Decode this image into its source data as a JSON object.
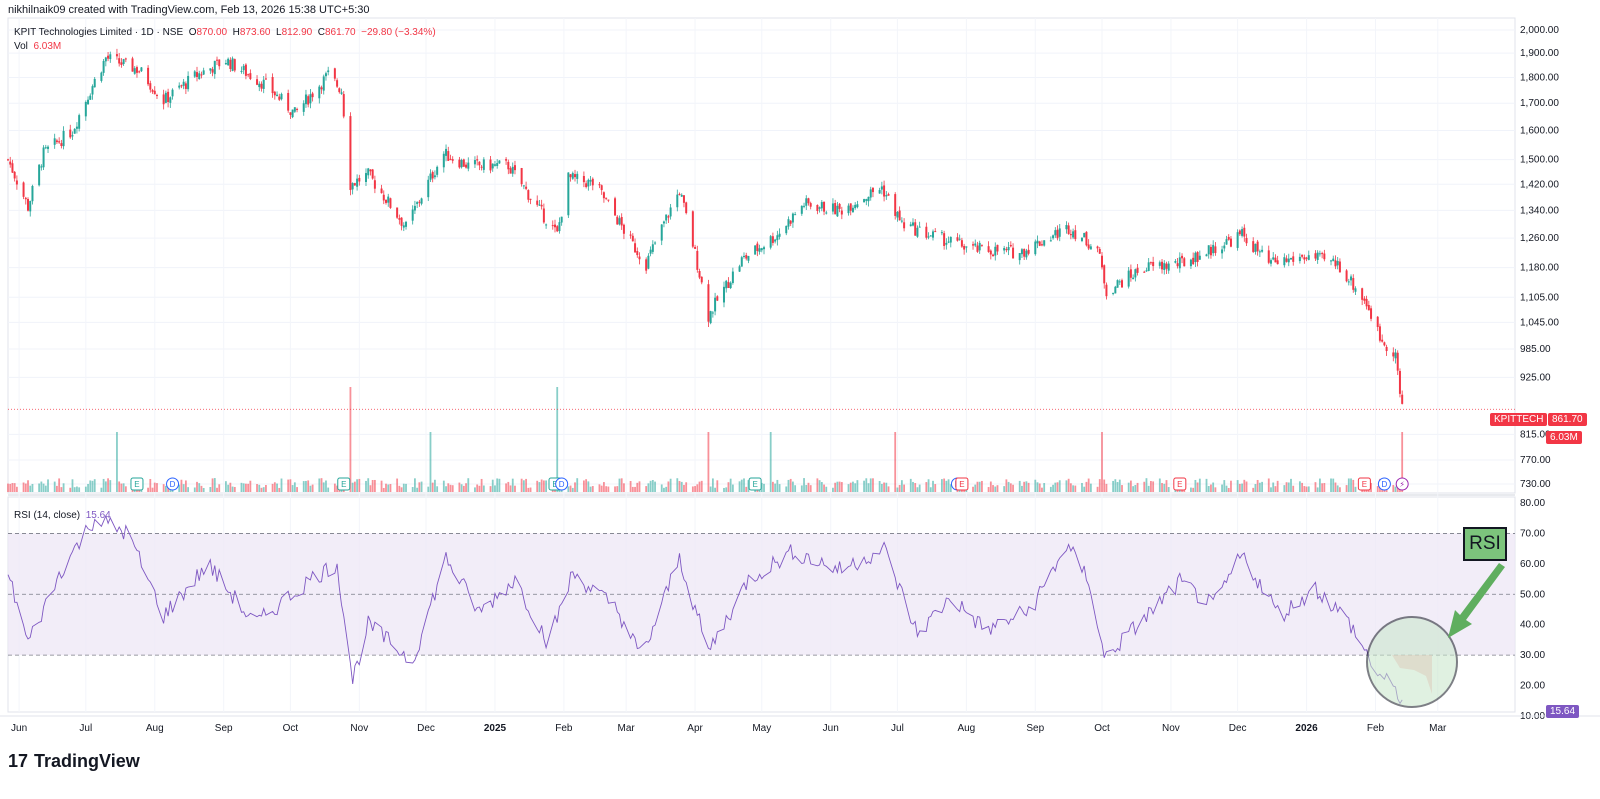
{
  "header": {
    "credit": "nikhilnaik09 created with TradingView.com, Feb 13, 2026 15:38 UTC+5:30"
  },
  "legend": {
    "symbol_line": "KPIT Technologies Limited · 1D · NSE",
    "o_label": "O",
    "o_value": "870.00",
    "h_label": "H",
    "h_value": "873.60",
    "l_label": "L",
    "l_value": "812.90",
    "c_label": "C",
    "c_value": "861.70",
    "change": "−29.80 (−3.34%)",
    "vol_label": "Vol",
    "vol_value": "6.03M",
    "rsi_label": "RSI (14, close)",
    "rsi_value": "15.64"
  },
  "price_tags": {
    "symbol": "KPITTECH",
    "last": "861.70",
    "volume": "6.03M",
    "rsi": "15.64"
  },
  "annotation": {
    "label": "RSI"
  },
  "brand": {
    "name": "TradingView"
  },
  "colors": {
    "up": "#26a69a",
    "down": "#f23645",
    "rsi_line": "#7e57c2",
    "rsi_band": "#ede7f6",
    "callout_fill": "#c8e6c9",
    "arrow": "#5fae5f"
  },
  "chart_data": {
    "type": "candlestick",
    "x_labels": [
      "Jun",
      "Jul",
      "Aug",
      "Sep",
      "Oct",
      "Nov",
      "Dec",
      "2025",
      "Feb",
      "Mar",
      "Apr",
      "May",
      "Jun",
      "Jul",
      "Aug",
      "Sep",
      "Oct",
      "Nov",
      "Dec",
      "2026",
      "Feb",
      "Mar"
    ],
    "price_axis_ticks": [
      "2,000.00",
      "1,900.00",
      "1,800.00",
      "1,700.00",
      "1,600.00",
      "1,500.00",
      "1,420.00",
      "1,340.00",
      "1,260.00",
      "1,180.00",
      "1,105.00",
      "1,045.00",
      "985.00",
      "925.00",
      "815.00",
      "770.00",
      "730.00"
    ],
    "rsi_axis_ticks": [
      "80.00",
      "70.00",
      "60.00",
      "50.00",
      "40.00",
      "30.00",
      "20.00",
      "10.00"
    ],
    "price_scale": "log",
    "price_path": [
      [
        "2024-05-27",
        1500
      ],
      [
        "2024-06-05",
        1350
      ],
      [
        "2024-06-12",
        1520
      ],
      [
        "2024-06-25",
        1600
      ],
      [
        "2024-07-10",
        1880
      ],
      [
        "2024-07-25",
        1830
      ],
      [
        "2024-08-05",
        1710
      ],
      [
        "2024-08-20",
        1810
      ],
      [
        "2024-09-02",
        1870
      ],
      [
        "2024-09-20",
        1770
      ],
      [
        "2024-10-03",
        1660
      ],
      [
        "2024-10-18",
        1810
      ],
      [
        "2024-10-24",
        1750
      ],
      [
        "2024-10-28",
        1420
      ],
      [
        "2024-11-05",
        1450
      ],
      [
        "2024-11-22",
        1290
      ],
      [
        "2024-12-09",
        1520
      ],
      [
        "2024-12-20",
        1480
      ],
      [
        "2025-01-07",
        1480
      ],
      [
        "2025-01-20",
        1350
      ],
      [
        "2025-01-29",
        1270
      ],
      [
        "2025-02-03",
        1440
      ],
      [
        "2025-02-15",
        1420
      ],
      [
        "2025-03-03",
        1250
      ],
      [
        "2025-03-10",
        1190
      ],
      [
        "2025-03-25",
        1400
      ],
      [
        "2025-04-07",
        1060
      ],
      [
        "2025-04-22",
        1200
      ],
      [
        "2025-05-08",
        1270
      ],
      [
        "2025-05-20",
        1360
      ],
      [
        "2025-06-05",
        1340
      ],
      [
        "2025-06-24",
        1410
      ],
      [
        "2025-07-03",
        1300
      ],
      [
        "2025-07-15",
        1270
      ],
      [
        "2025-08-04",
        1230
      ],
      [
        "2025-08-25",
        1220
      ],
      [
        "2025-09-16",
        1290
      ],
      [
        "2025-09-29",
        1230
      ],
      [
        "2025-10-03",
        1120
      ],
      [
        "2025-10-20",
        1180
      ],
      [
        "2025-11-05",
        1190
      ],
      [
        "2025-11-20",
        1230
      ],
      [
        "2025-12-03",
        1270
      ],
      [
        "2025-12-15",
        1190
      ],
      [
        "2026-01-01",
        1210
      ],
      [
        "2026-01-15",
        1190
      ],
      [
        "2026-01-28",
        1090
      ],
      [
        "2026-02-03",
        1010
      ],
      [
        "2026-02-10",
        975
      ],
      [
        "2026-02-12",
        891.5
      ],
      [
        "2026-02-13",
        861.7
      ]
    ],
    "volume_spikes": [
      {
        "date": "2024-07-15",
        "volume": "high",
        "dir": "up"
      },
      {
        "date": "2024-10-28",
        "volume": "highest",
        "dir": "down"
      },
      {
        "date": "2024-12-03",
        "volume": "high",
        "dir": "up"
      },
      {
        "date": "2025-01-29",
        "volume": "highest",
        "dir": "up"
      },
      {
        "date": "2025-04-07",
        "volume": "high",
        "dir": "down"
      },
      {
        "date": "2025-05-05",
        "volume": "high",
        "dir": "up"
      },
      {
        "date": "2025-06-30",
        "volume": "high",
        "dir": "down"
      },
      {
        "date": "2025-10-01",
        "volume": "high",
        "dir": "down"
      },
      {
        "date": "2026-02-13",
        "volume": "high",
        "dir": "down"
      }
    ],
    "rsi_path": [
      [
        "2024-05-27",
        57
      ],
      [
        "2024-06-05",
        34
      ],
      [
        "2024-06-20",
        58
      ],
      [
        "2024-07-05",
        75
      ],
      [
        "2024-07-20",
        70
      ],
      [
        "2024-08-05",
        43
      ],
      [
        "2024-08-25",
        60
      ],
      [
        "2024-09-15",
        40
      ],
      [
        "2024-10-10",
        55
      ],
      [
        "2024-10-22",
        60
      ],
      [
        "2024-10-29",
        22
      ],
      [
        "2024-11-05",
        40
      ],
      [
        "2024-11-25",
        28
      ],
      [
        "2024-12-10",
        62
      ],
      [
        "2024-12-25",
        44
      ],
      [
        "2025-01-10",
        55
      ],
      [
        "2025-01-25",
        34
      ],
      [
        "2025-02-05",
        57
      ],
      [
        "2025-02-25",
        45
      ],
      [
        "2025-03-08",
        29
      ],
      [
        "2025-03-25",
        62
      ],
      [
        "2025-04-07",
        31
      ],
      [
        "2025-04-25",
        55
      ],
      [
        "2025-05-15",
        64
      ],
      [
        "2025-06-05",
        58
      ],
      [
        "2025-06-25",
        65
      ],
      [
        "2025-07-10",
        37
      ],
      [
        "2025-07-25",
        49
      ],
      [
        "2025-08-10",
        38
      ],
      [
        "2025-08-30",
        45
      ],
      [
        "2025-09-15",
        66
      ],
      [
        "2025-09-25",
        55
      ],
      [
        "2025-10-02",
        29
      ],
      [
        "2025-10-20",
        42
      ],
      [
        "2025-11-05",
        54
      ],
      [
        "2025-11-20",
        46
      ],
      [
        "2025-12-03",
        63
      ],
      [
        "2025-12-20",
        43
      ],
      [
        "2026-01-05",
        52
      ],
      [
        "2026-01-20",
        41
      ],
      [
        "2026-02-01",
        25
      ],
      [
        "2026-02-13",
        15.64
      ]
    ],
    "rsi_bands": [
      70,
      50,
      30
    ],
    "event_markers": [
      {
        "date": "2024-07-24",
        "kind": "E"
      },
      {
        "date": "2024-08-09",
        "kind": "D"
      },
      {
        "date": "2024-10-25",
        "kind": "E"
      },
      {
        "date": "2025-01-28",
        "kind": "E"
      },
      {
        "date": "2025-01-31",
        "kind": "D"
      },
      {
        "date": "2025-04-28",
        "kind": "E"
      },
      {
        "date": "2025-07-28",
        "kind": "D"
      },
      {
        "date": "2025-07-30",
        "kind": "E"
      },
      {
        "date": "2025-11-05",
        "kind": "E"
      },
      {
        "date": "2026-01-27",
        "kind": "E"
      },
      {
        "date": "2026-02-05",
        "kind": "D"
      },
      {
        "date": "2026-02-13",
        "kind": "⚡"
      }
    ]
  }
}
